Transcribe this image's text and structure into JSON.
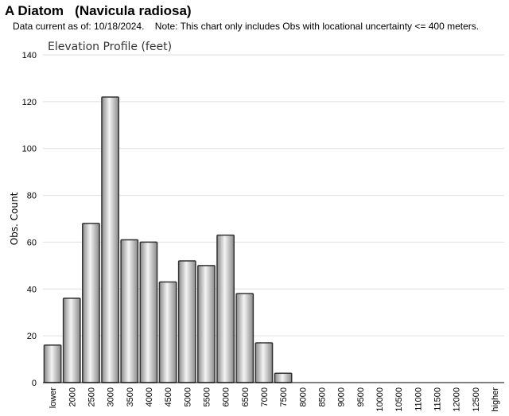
{
  "header": {
    "title": "A Diatom   (Navicula radiosa)",
    "note": "Data current as of: 10/18/2024.    Note: This chart only includes Obs with locational uncertainty <= 400 meters."
  },
  "chart_data": {
    "type": "bar",
    "title": "Elevation Profile (feet)",
    "xlabel": "",
    "ylabel": "Obs. Count",
    "ylim": [
      0,
      140
    ],
    "yticks": [
      0,
      20,
      40,
      60,
      80,
      100,
      120,
      140
    ],
    "grid": true,
    "categories": [
      "lower",
      "2000",
      "2500",
      "3000",
      "3500",
      "4000",
      "4500",
      "5000",
      "5500",
      "6000",
      "6500",
      "7000",
      "7500",
      "8000",
      "8500",
      "9000",
      "9500",
      "10000",
      "10500",
      "11000",
      "11500",
      "12000",
      "12500",
      "higher"
    ],
    "values": [
      16,
      36,
      68,
      122,
      61,
      60,
      43,
      52,
      50,
      63,
      38,
      17,
      4,
      0,
      0,
      0,
      0,
      0,
      0,
      0,
      0,
      0,
      0,
      0
    ],
    "colors": {
      "bar_edge": "#333333",
      "bar_light": "#f4f4f4",
      "bar_dark": "#8a8a8a",
      "grid": "#e0e0e0",
      "axis": "#000000"
    }
  }
}
